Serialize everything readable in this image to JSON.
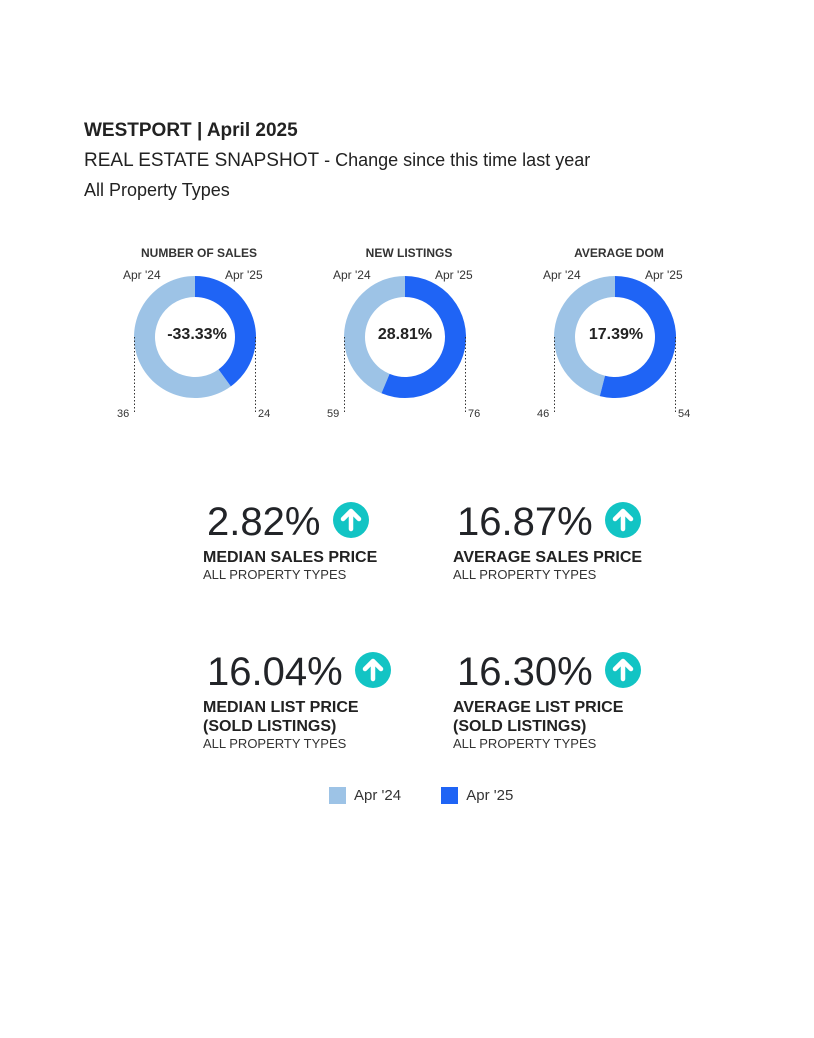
{
  "header": {
    "title": "WESTPORT | April 2025",
    "subtitle_main": "REAL ESTATE SNAPSHOT",
    "subtitle_tail": " - Change since this time last year",
    "property_types": "All Property Types"
  },
  "colors": {
    "prev": "#9DC3E6",
    "current": "#1F64F5",
    "up_arrow": "#12C4C4"
  },
  "chart_data": [
    {
      "type": "pie",
      "title": "NUMBER OF SALES",
      "labels": [
        "Apr '24",
        "Apr '25"
      ],
      "values": [
        36,
        24
      ],
      "center": "-33.33%",
      "values_text": [
        "36",
        "24"
      ]
    },
    {
      "type": "pie",
      "title": "NEW LISTINGS",
      "labels": [
        "Apr '24",
        "Apr '25"
      ],
      "values": [
        59,
        76
      ],
      "center": "28.81%",
      "values_text": [
        "59",
        "76"
      ]
    },
    {
      "type": "pie",
      "title": "AVERAGE DOM",
      "labels": [
        "Apr '24",
        "Apr '25"
      ],
      "values": [
        46,
        54
      ],
      "center": "17.39%",
      "values_text": [
        "46",
        "54"
      ]
    }
  ],
  "stats": [
    {
      "value": "2.82%",
      "name": "MEDIAN SALES PRICE",
      "sub": "ALL PROPERTY TYPES",
      "direction": "up"
    },
    {
      "value": "16.87%",
      "name": "AVERAGE SALES PRICE",
      "sub": "ALL PROPERTY TYPES",
      "direction": "up"
    },
    {
      "value": "16.04%",
      "name": "MEDIAN LIST PRICE",
      "name2": "(SOLD LISTINGS)",
      "sub": "ALL PROPERTY TYPES",
      "direction": "up"
    },
    {
      "value": "16.30%",
      "name": "AVERAGE LIST PRICE",
      "name2": "(SOLD LISTINGS)",
      "sub": "ALL PROPERTY TYPES",
      "direction": "up"
    }
  ],
  "legend": {
    "prev": "Apr '24",
    "current": "Apr '25"
  }
}
